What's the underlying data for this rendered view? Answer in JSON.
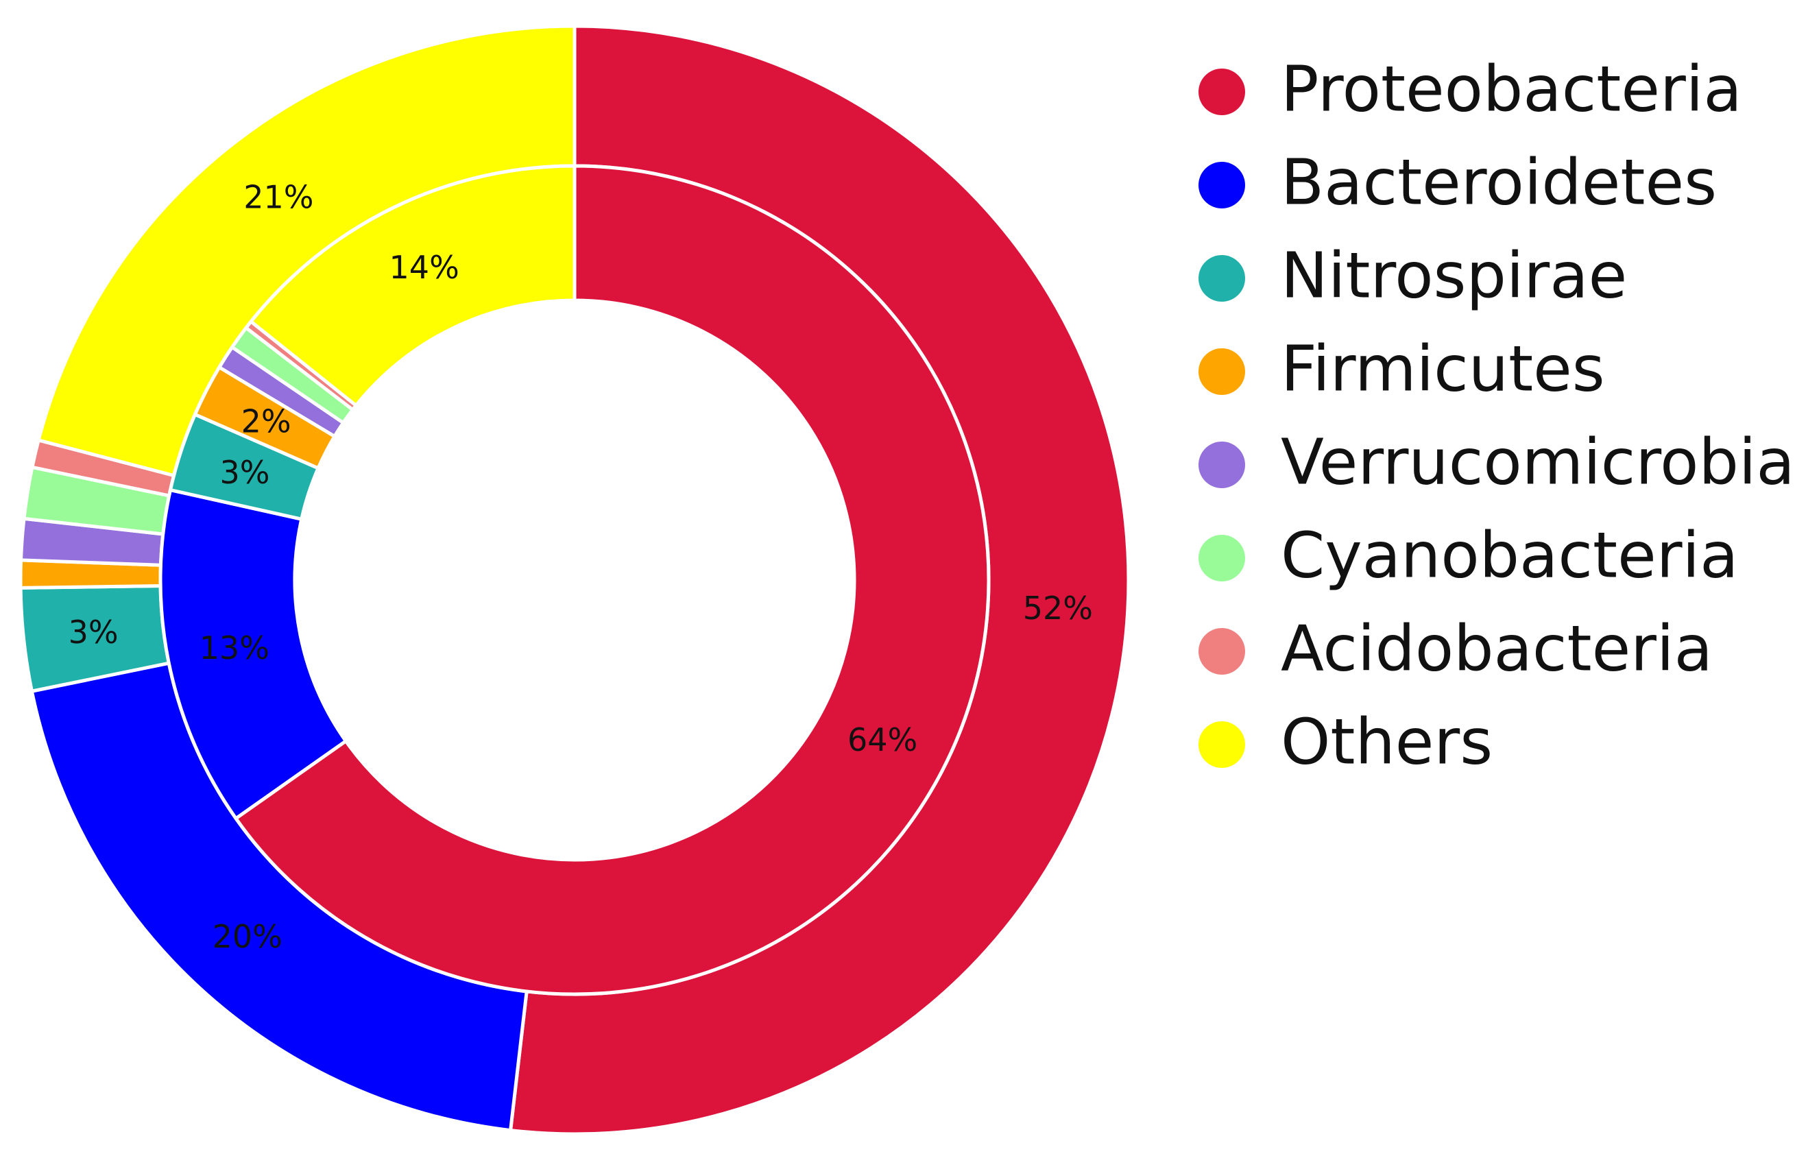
{
  "chart_data": {
    "type": "pie",
    "style": "nested-donut",
    "legend_position": "right",
    "categories": [
      "Proteobacteria",
      "Bacteroidetes",
      "Nitrospirae",
      "Firmicutes",
      "Verrucomicrobia",
      "Cyanobacteria",
      "Acidobacteria",
      "Others"
    ],
    "colors": [
      "#dc143c",
      "#0000ff",
      "#20b2aa",
      "#ffa500",
      "#9370db",
      "#98fb98",
      "#f08080",
      "#ffff00"
    ],
    "series": [
      {
        "ring": "outer",
        "values": [
          52,
          20,
          3,
          0.8,
          1.2,
          1.5,
          0.8,
          21
        ],
        "labels": [
          "52%",
          "20%",
          "3%",
          "",
          "",
          "",
          "",
          "21%"
        ]
      },
      {
        "ring": "inner",
        "values": [
          64,
          13,
          3,
          2,
          0.9,
          0.9,
          0.3,
          14
        ],
        "labels": [
          "64%",
          "13%",
          "3%",
          "2%",
          "",
          "",
          "",
          "14%"
        ]
      }
    ]
  }
}
